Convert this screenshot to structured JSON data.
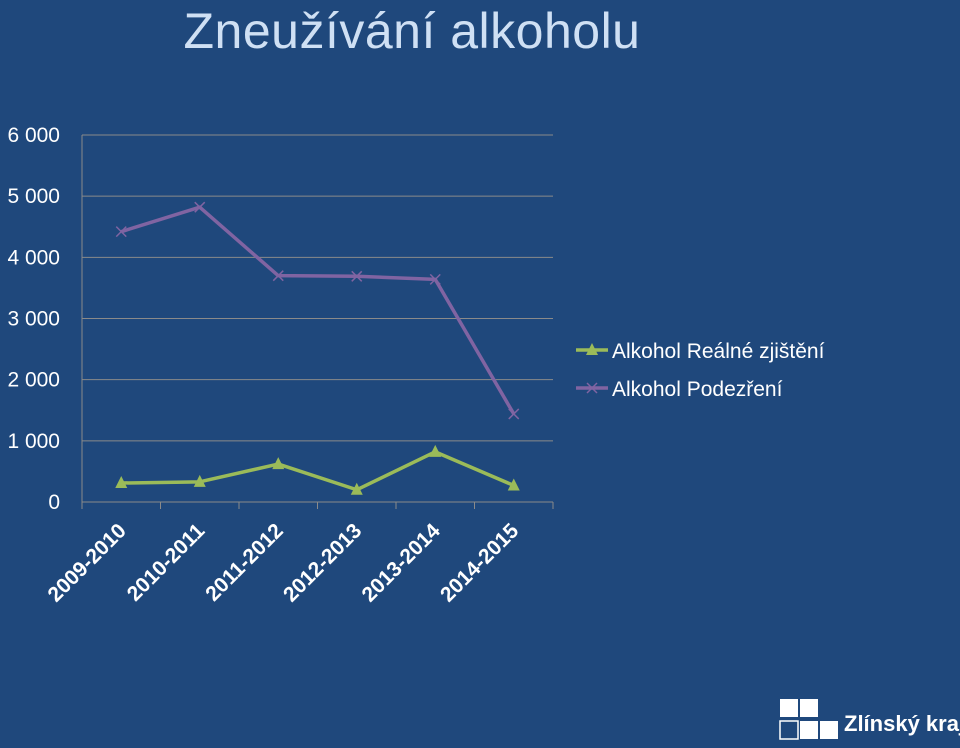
{
  "chart_data": {
    "type": "line",
    "title": "Zneužívání alkoholu",
    "categories": [
      "2009-2010",
      "2010-2011",
      "2011-2012",
      "2012-2013",
      "2013-2014",
      "2014-2015"
    ],
    "yticks": [
      "0",
      "1 000",
      "2 000",
      "3 000",
      "4 000",
      "5 000",
      "6 000"
    ],
    "ylim": [
      0,
      6000
    ],
    "grid": true,
    "legend_position": "right",
    "series": [
      {
        "name": "Alkohol Reálné zjištění",
        "color": "#9bbb59",
        "marker": "triangle",
        "values": [
          310,
          330,
          620,
          200,
          820,
          270
        ]
      },
      {
        "name": "Alkohol Podezření",
        "color": "#8064a2",
        "marker": "x",
        "values": [
          4420,
          4820,
          3700,
          3690,
          3640,
          1440
        ]
      }
    ]
  },
  "logo": {
    "text": "Zlínský kraj"
  }
}
